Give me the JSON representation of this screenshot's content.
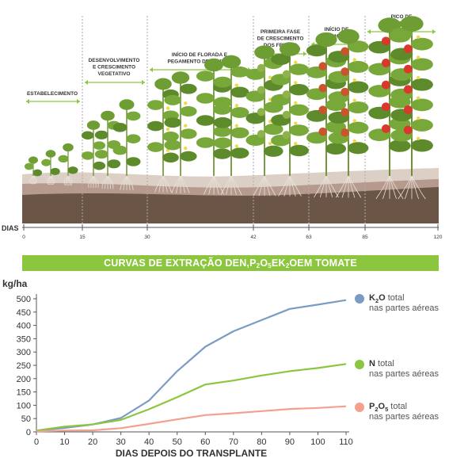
{
  "stages": {
    "labels": [
      "ESTABELECIMENTO",
      "DESENVOLVIMENTO|E CRESCIMENTO|VEGETATIVO",
      "INÍCIO DE FLORADA E|PEGAMENTO DE FRUTOS",
      "PRIMEIRA FASE|DE CRESCIMENTO|DOS FRUTOS",
      "INÍCIO DE|COLHEITA",
      "PICO DE|COLHEITA"
    ],
    "timeline_label": "DIAS",
    "ticks": [
      "0",
      "15",
      "30",
      "42",
      "63",
      "85",
      "120"
    ]
  },
  "banner": {
    "prefix": "CURVAS DE EXTRAÇÃO DE ",
    "n": "N",
    "sep1": ", ",
    "p": "P",
    "p_sub1": "2",
    "o1": "O",
    "p_sub2": "5",
    "sep2": " E ",
    "k": "K",
    "k_sub": "2",
    "o2": "O",
    "suffix": " EM TOMATE"
  },
  "chart_data": {
    "type": "line",
    "ylabel": "kg/ha",
    "xlabel": "DIAS DEPOIS DO TRANSPLANTE",
    "x": [
      0,
      10,
      20,
      30,
      40,
      50,
      60,
      70,
      80,
      90,
      100,
      110
    ],
    "xlim": [
      0,
      110
    ],
    "ylim": [
      0,
      500
    ],
    "xticks": [
      "0",
      "10",
      "20",
      "30",
      "40",
      "50",
      "60",
      "70",
      "80",
      "90",
      "100",
      "110"
    ],
    "yticks": [
      "0",
      "50",
      "100",
      "150",
      "200",
      "250",
      "300",
      "350",
      "400",
      "450",
      "500"
    ],
    "series": [
      {
        "key": "k2o",
        "color": "#7b9cc2",
        "values": [
          5,
          15,
          28,
          52,
          118,
          228,
          320,
          378,
          420,
          462,
          478,
          495
        ]
      },
      {
        "key": "n",
        "color": "#8cc63f",
        "values": [
          5,
          20,
          28,
          45,
          85,
          130,
          178,
          193,
          212,
          228,
          240,
          255
        ]
      },
      {
        "key": "p2o5",
        "color": "#f4a08f",
        "values": [
          2,
          5,
          6,
          14,
          30,
          47,
          63,
          70,
          78,
          86,
          90,
          96
        ]
      }
    ],
    "legend": [
      {
        "key": "k2o",
        "main": "K",
        "sub": "2",
        "tail": "O",
        "suffix": " total",
        "desc": "nas partes aéreas",
        "color": "#7b9cc2"
      },
      {
        "key": "n",
        "main": "N",
        "sub": "",
        "tail": "",
        "suffix": " total",
        "desc": "nas partes aéreas",
        "color": "#8cc63f"
      },
      {
        "key": "p2o5",
        "main": "P",
        "sub": "2",
        "tail": "O",
        "sub2": "5",
        "suffix": " total",
        "desc": "nas partes aéreas",
        "color": "#f4a08f"
      }
    ],
    "grid": false
  }
}
